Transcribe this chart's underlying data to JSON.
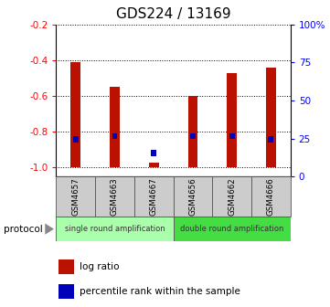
{
  "title": "GDS224 / 13169",
  "samples": [
    "GSM4657",
    "GSM4663",
    "GSM4667",
    "GSM4656",
    "GSM4662",
    "GSM4666"
  ],
  "log_ratios": [
    -0.41,
    -0.55,
    -0.97,
    -0.6,
    -0.47,
    -0.44
  ],
  "percentile_ranks": [
    20,
    22,
    10,
    22,
    22,
    20
  ],
  "ylim_left": [
    -1.05,
    -0.2
  ],
  "left_ticks": [
    -1.0,
    -0.8,
    -0.6,
    -0.4,
    -0.2
  ],
  "right_ticks": [
    0,
    25,
    50,
    75,
    100
  ],
  "bar_color": "#bb1100",
  "percentile_color": "#0000bb",
  "single_label": "single round amplification",
  "double_label": "double round amplification",
  "single_color": "#aaffaa",
  "double_color": "#44dd44",
  "protocol_label": "protocol",
  "legend_log": "log ratio",
  "legend_pct": "percentile rank within the sample",
  "bar_width": 0.25
}
